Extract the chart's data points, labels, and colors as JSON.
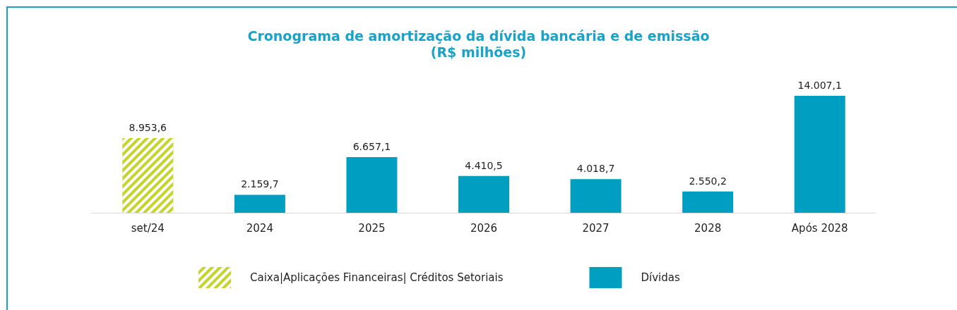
{
  "chart_data": {
    "type": "bar",
    "title": "Cronograma de amortização da dívida bancária e de emissão",
    "subtitle": "(R$ milhões)",
    "categories": [
      "set/24",
      "2024",
      "2025",
      "2026",
      "2027",
      "2028",
      "Após 2028"
    ],
    "series": [
      {
        "name": "Caixa|Aplicações Financeiras| Créditos Setoriais",
        "color": "#c5d42b",
        "values": [
          8953.6,
          null,
          null,
          null,
          null,
          null,
          null
        ],
        "value_labels": [
          "8.953,6",
          null,
          null,
          null,
          null,
          null,
          null
        ]
      },
      {
        "name": "Dívidas",
        "color": "#009fc2",
        "values": [
          null,
          2159.7,
          6657.1,
          4410.5,
          4018.7,
          2550.2,
          14007.1
        ],
        "value_labels": [
          null,
          "2.159,7",
          "6.657,1",
          "4.410,5",
          "4.018,7",
          "2.550,2",
          "14.007,1"
        ]
      }
    ],
    "grid": false,
    "legend": "bottom",
    "tick_labels": "x"
  }
}
